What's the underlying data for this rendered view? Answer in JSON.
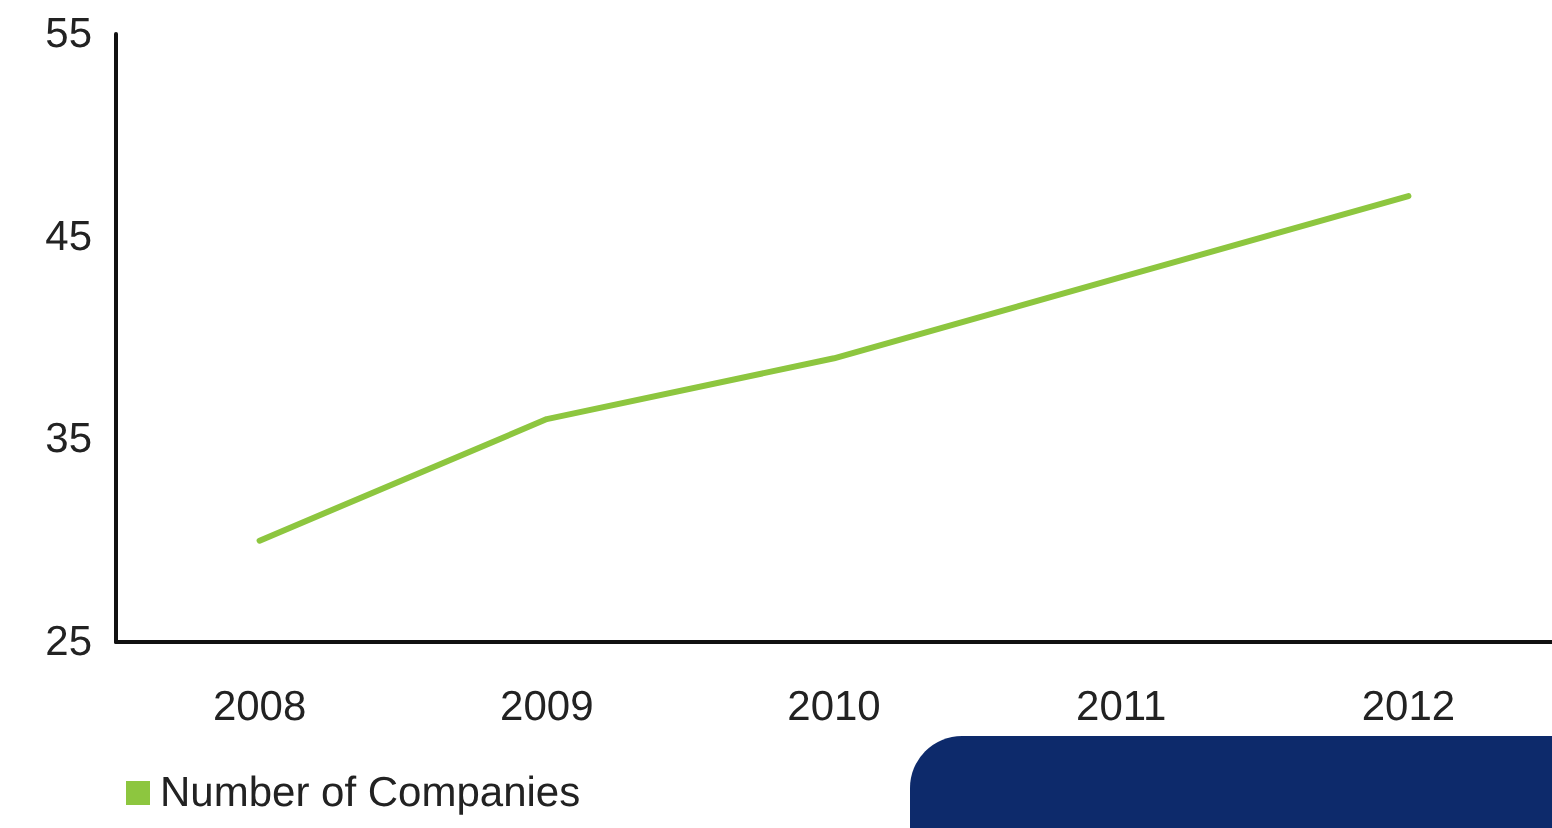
{
  "chart_data": {
    "type": "line",
    "categories": [
      "2008",
      "2009",
      "2010",
      "2011",
      "2012"
    ],
    "series": [
      {
        "name": "Number of Companies",
        "color": "#8dc63f",
        "values": [
          30,
          36,
          39,
          43,
          47
        ]
      }
    ],
    "ylim": [
      25,
      55
    ],
    "yticks": [
      25,
      35,
      45,
      55
    ],
    "grid": false,
    "legend": "bottom left",
    "marker": "none",
    "line_style": "solid"
  }
}
